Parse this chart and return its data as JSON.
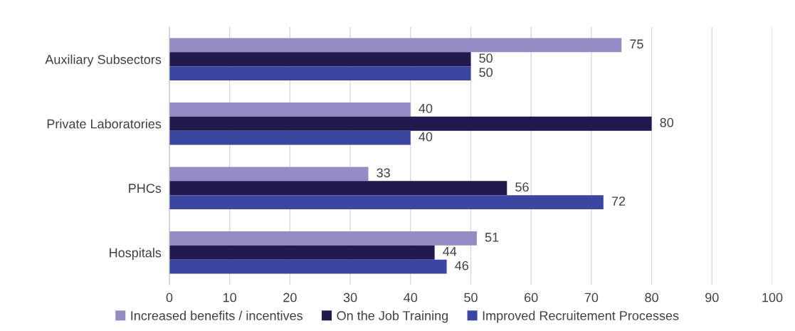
{
  "chart_data": {
    "type": "bar",
    "orientation": "horizontal",
    "categories": [
      "Auxiliary Subsectors",
      "Private Laboratories",
      "PHCs",
      "Hospitals"
    ],
    "series": [
      {
        "name": "Increased benefits / incentives",
        "color": "#968bc5",
        "values": [
          75,
          40,
          33,
          51
        ]
      },
      {
        "name": "On the Job Training",
        "color": "#221a4e",
        "values": [
          50,
          80,
          56,
          44
        ]
      },
      {
        "name": "Improved Recruitement Processes",
        "color": "#3a46a0",
        "values": [
          50,
          40,
          72,
          46
        ]
      }
    ],
    "xlim": [
      0,
      100
    ],
    "xticks": [
      0,
      10,
      20,
      30,
      40,
      50,
      60,
      70,
      80,
      90,
      100
    ],
    "grid": "x",
    "legend": "bottom",
    "data_labels": true
  }
}
